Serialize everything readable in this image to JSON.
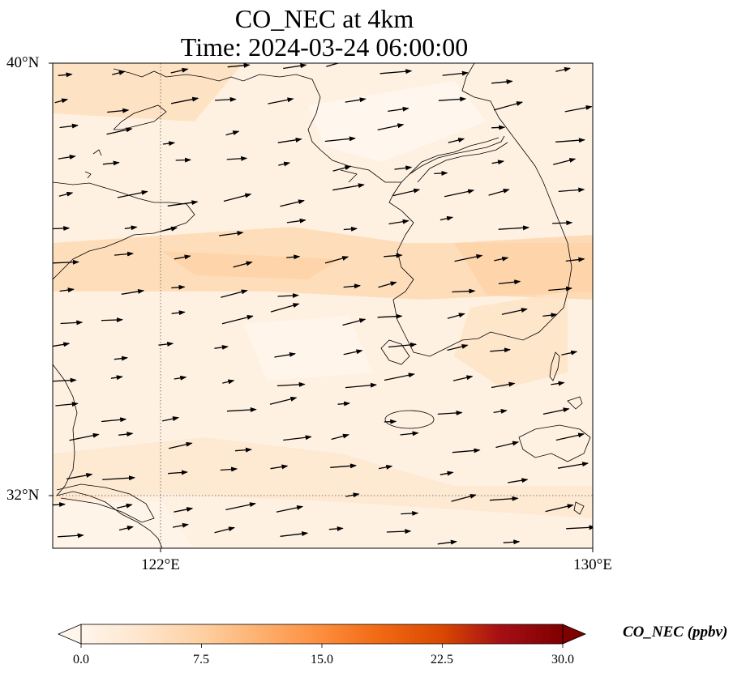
{
  "title": "CO_NEC at 4km",
  "subtitle": "Time: 2024-03-24 06:00:00",
  "axes": {
    "lat_labels": [
      "40°N",
      "32°N"
    ],
    "lon_labels": [
      "122°E",
      "130°E"
    ]
  },
  "colorbar": {
    "label": "CO_NEC (ppbv)",
    "ticks": [
      "0.0",
      "7.5",
      "15.0",
      "22.5",
      "30.0"
    ],
    "min": 0,
    "max": 30,
    "extend": "both",
    "colormap": [
      "#fff5eb",
      "#fdd0a2",
      "#fd8d3c",
      "#d94801",
      "#a50f15",
      "#7f0000"
    ]
  },
  "map": {
    "lon_range": [
      120,
      130
    ],
    "lat_range": [
      31,
      40
    ],
    "gridlines": "dotted at 122°E and 32°N",
    "field_range_ppbv": [
      0,
      9
    ],
    "wind_vectors": "uniform westerly flow, slightly from the WSW"
  }
}
